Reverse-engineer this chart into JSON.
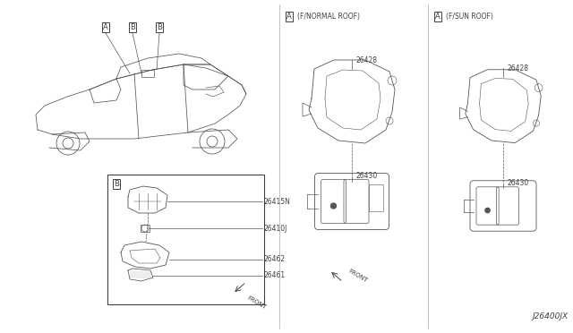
{
  "bg_color": "#ffffff",
  "line_color": "#404040",
  "thin_color": "#555555",
  "catalog_num": "J26400JX",
  "part_26428": "26428",
  "part_26430": "26430",
  "part_26415N": "26415N",
  "part_26410J": "26410J",
  "part_26462": "26462",
  "part_26461": "26461",
  "label_A_normal": "(F/NORMAL ROOF)",
  "label_A_sun": "(F/SUN ROOF)",
  "front": "FRONT",
  "figsize": [
    6.4,
    3.72
  ],
  "dpi": 100
}
